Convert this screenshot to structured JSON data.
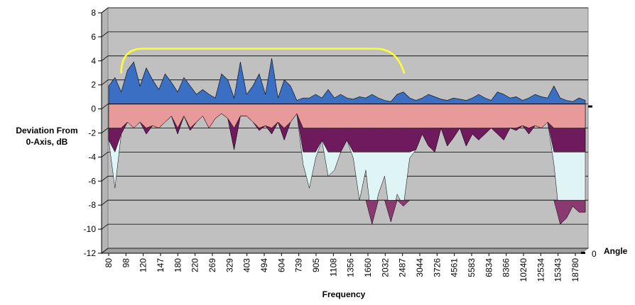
{
  "chart_data": {
    "type": "area",
    "ylabel_lines": [
      "Deviation From",
      "0-Axis, dB"
    ],
    "xlabel": "Frequency",
    "depth_label": "Angle",
    "depth_tick": "0",
    "ylim": [
      -12,
      8
    ],
    "y_ticks": [
      8,
      6,
      4,
      2,
      0,
      -2,
      -4,
      -6,
      -8,
      -10,
      -12
    ],
    "x_tick_labels": [
      "80",
      "98",
      "120",
      "147",
      "180",
      "220",
      "269",
      "329",
      "403",
      "494",
      "604",
      "739",
      "905",
      "1108",
      "1356",
      "1660",
      "2032",
      "2487",
      "3044",
      "3726",
      "4561",
      "5583",
      "6834",
      "8366",
      "10240",
      "12534",
      "15343",
      "18780"
    ],
    "grid": true,
    "colors": {
      "wall": "#c0c0c0",
      "floor": "#a0a0a0",
      "blue_band": "#3a6fc4",
      "pink_band": "#e89a9a",
      "purple_band": "#6e1a5c",
      "cyan_band": "#dff4f4",
      "highlight": "#ffff33"
    },
    "series": [
      {
        "values": [
          1.5,
          2.2,
          1.0,
          2.8,
          3.5,
          1.5,
          3.0,
          2.0,
          1.2,
          2.5,
          1.8,
          1.0,
          2.2,
          1.5,
          0.8,
          1.2,
          0.8,
          0.5,
          2.5,
          2.0,
          0.5,
          3.5,
          0.8,
          1.5,
          2.5,
          0.8,
          3.8,
          0.5,
          2.0,
          1.5,
          0.3,
          0.5,
          0.5,
          0.8,
          0.5,
          1.2,
          0.5,
          0.8,
          0.5,
          0.4,
          0.6,
          0.5,
          0.8,
          0.5,
          0.3,
          0.2,
          0.8,
          1.0,
          0.5,
          0.3,
          0.5,
          0.8,
          0.6,
          0.4,
          0.3,
          0.5,
          0.4,
          0.3,
          0.5,
          0.8,
          0.5,
          0.3,
          1.0,
          0.8,
          0.5,
          0.6,
          0.3,
          0.5,
          0.8,
          0.6,
          0.5,
          1.5,
          0.5,
          0.3,
          0.2,
          0.5,
          0.3
        ],
        "lows": [
          -3.0,
          -7.0,
          -2.5,
          -1.5,
          -2.0,
          -1.5,
          -2.5,
          -1.8,
          -2.0,
          -1.5,
          -1.0,
          -2.5,
          -1.0,
          -2.2,
          -1.5,
          -1.0,
          -2.0,
          -1.2,
          -0.8,
          -1.2,
          -3.8,
          -1.0,
          -1.0,
          -1.5,
          -2.2,
          -1.8,
          -2.5,
          -1.5,
          -3.0,
          -1.5,
          -0.8,
          -5.0,
          -7.0,
          -4.5,
          -3.0,
          -6.0,
          -5.5,
          -4.0,
          -3.0,
          -4.5,
          -8.0,
          -5.5,
          -10.0,
          -7.5,
          -6.0,
          -9.8,
          -7.5,
          -8.5,
          -4.5,
          -3.8,
          -2.5,
          -3.5,
          -4.0,
          -2.0,
          -3.5,
          -2.8,
          -2.0,
          -3.5,
          -2.5,
          -3.0,
          -2.5,
          -2.0,
          -2.5,
          -3.0,
          -2.0,
          -2.2,
          -1.8,
          -2.5,
          -1.8,
          -2.0,
          -1.5,
          -5.0,
          -10.0,
          -9.5,
          -8.5,
          -9.0,
          -9.0
        ]
      }
    ],
    "annotation": {
      "type": "bracket",
      "from_index": 2,
      "to_index": 46,
      "level": 4.6
    }
  }
}
